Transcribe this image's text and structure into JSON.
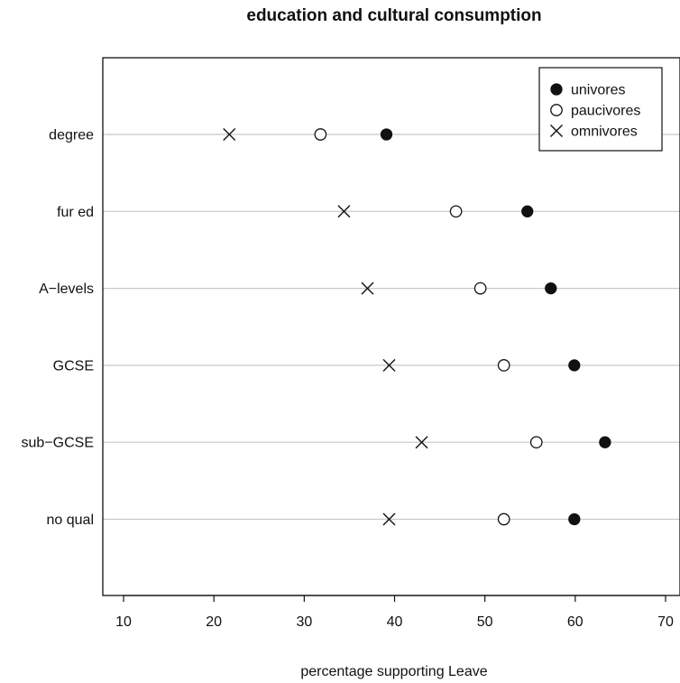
{
  "chart_data": {
    "type": "scatter",
    "title": "education and cultural consumption",
    "xlabel": "percentage supporting Leave",
    "ylabel": "",
    "xlim": [
      7.7,
      71.6
    ],
    "xticks": [
      10,
      20,
      30,
      40,
      50,
      60,
      70
    ],
    "categories": [
      "degree",
      "fur ed",
      "A−levels",
      "GCSE",
      "sub−GCSE",
      "no qual"
    ],
    "grid": "horizontal lines at categories",
    "legend_position": "top-right",
    "series": [
      {
        "name": "univores",
        "marker": "filled-circle",
        "values": [
          39.1,
          54.7,
          57.3,
          59.9,
          63.3,
          59.9
        ]
      },
      {
        "name": "paucivores",
        "marker": "open-circle",
        "values": [
          31.8,
          46.8,
          49.5,
          52.1,
          55.7,
          52.1
        ]
      },
      {
        "name": "omnivores",
        "marker": "cross",
        "values": [
          21.7,
          34.4,
          37.0,
          39.4,
          43.0,
          39.4
        ]
      }
    ],
    "colors": {
      "marker": "#111111",
      "grid": "#c8c8c8",
      "axis": "#111111"
    }
  }
}
